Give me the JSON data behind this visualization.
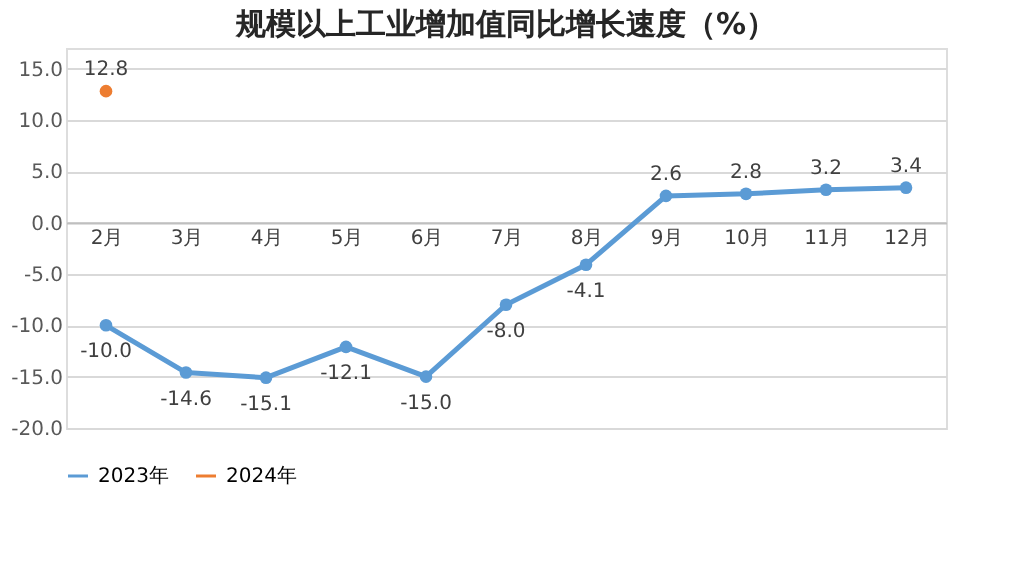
{
  "chart_data": {
    "type": "line",
    "title": "规模以上工业增加值同比增长速度（%）",
    "categories": [
      "2月",
      "3月",
      "4月",
      "5月",
      "6月",
      "7月",
      "8月",
      "9月",
      "10月",
      "11月",
      "12月"
    ],
    "series": [
      {
        "name": "2023年",
        "color": "#5b9bd5",
        "values": [
          -10.0,
          -14.6,
          -15.1,
          -12.1,
          -15.0,
          -8.0,
          -4.1,
          2.6,
          2.8,
          3.2,
          3.4
        ],
        "value_labels": [
          "-10.0",
          "-14.6",
          "-15.1",
          "-12.1",
          "-15.0",
          "-8.0",
          "-4.1",
          "2.6",
          "2.8",
          "3.2",
          "3.4"
        ]
      },
      {
        "name": "2024年",
        "color": "#ed7d31",
        "values": [
          12.8,
          null,
          null,
          null,
          null,
          null,
          null,
          null,
          null,
          null,
          null
        ],
        "value_labels": [
          "12.8",
          null,
          null,
          null,
          null,
          null,
          null,
          null,
          null,
          null,
          null
        ]
      }
    ],
    "ylim": [
      -20,
      17
    ],
    "yticks": [
      {
        "value": -20,
        "label": "-20.0"
      },
      {
        "value": -15,
        "label": "-15.0"
      },
      {
        "value": -10,
        "label": "-10.0"
      },
      {
        "value": -5,
        "label": "-5.0"
      },
      {
        "value": 0,
        "label": "0.0"
      },
      {
        "value": 5,
        "label": "5.0"
      },
      {
        "value": 10,
        "label": "10.0"
      },
      {
        "value": 15,
        "label": "15.0"
      }
    ],
    "grid": "y",
    "legend": "bottom",
    "marker": "circle",
    "line_style": "solid"
  }
}
